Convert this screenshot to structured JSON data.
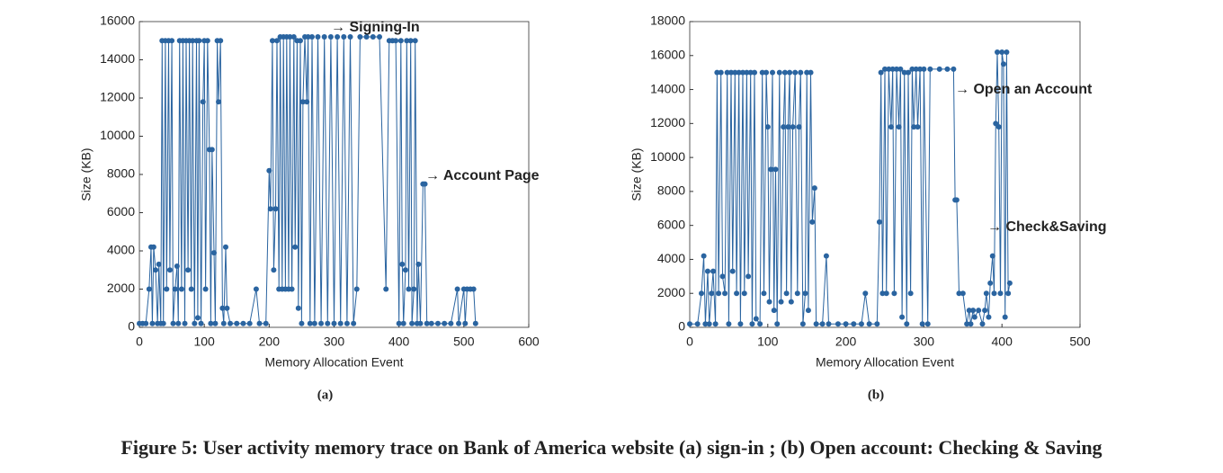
{
  "chart_data": [
    {
      "type": "line",
      "label": "(a)",
      "xlabel": "Memory Allocation Event",
      "ylabel": "Size (KB)",
      "color": "#2a64a0",
      "xlim": [
        0,
        600
      ],
      "xticks": [
        0,
        100,
        200,
        300,
        400,
        500,
        600
      ],
      "ylim": [
        0,
        16000
      ],
      "yticks": [
        0,
        2000,
        4000,
        6000,
        8000,
        10000,
        12000,
        14000,
        16000
      ],
      "annotations": [
        "→ Signing-In",
        "→ Account Page"
      ],
      "x": [
        0,
        5,
        10,
        15,
        18,
        20,
        22,
        25,
        28,
        30,
        33,
        35,
        37,
        40,
        42,
        45,
        47,
        50,
        52,
        55,
        58,
        60,
        62,
        65,
        67,
        70,
        72,
        75,
        77,
        80,
        82,
        85,
        88,
        90,
        92,
        95,
        98,
        100,
        102,
        105,
        108,
        110,
        112,
        115,
        117,
        120,
        122,
        125,
        128,
        130,
        133,
        135,
        140,
        150,
        160,
        170,
        180,
        185,
        195,
        200,
        202,
        205,
        207,
        210,
        212,
        215,
        217,
        220,
        222,
        225,
        227,
        230,
        232,
        235,
        238,
        240,
        243,
        245,
        248,
        250,
        252,
        255,
        258,
        260,
        263,
        266,
        270,
        275,
        280,
        285,
        290,
        295,
        300,
        305,
        310,
        315,
        320,
        325,
        330,
        335,
        340,
        350,
        360,
        370,
        380,
        385,
        390,
        395,
        400,
        403,
        405,
        407,
        410,
        412,
        415,
        418,
        420,
        423,
        425,
        428,
        430,
        433,
        437,
        440,
        443,
        450,
        460,
        470,
        480,
        490,
        492,
        500,
        502,
        505,
        510,
        515,
        518
      ],
      "values": [
        200,
        200,
        200,
        2000,
        4200,
        200,
        4200,
        3000,
        200,
        3300,
        200,
        15000,
        200,
        15000,
        2000,
        15000,
        3000,
        15000,
        200,
        2000,
        3200,
        200,
        15000,
        2000,
        15000,
        200,
        15000,
        3000,
        15000,
        2000,
        15000,
        200,
        15000,
        500,
        15000,
        200,
        11800,
        15000,
        2000,
        15000,
        9300,
        200,
        9300,
        3900,
        200,
        15000,
        11800,
        15000,
        1000,
        200,
        4200,
        1000,
        200,
        200,
        200,
        200,
        2000,
        200,
        200,
        8200,
        6200,
        15000,
        3000,
        6200,
        15000,
        2000,
        15200,
        2000,
        15200,
        2000,
        15200,
        2000,
        15200,
        2000,
        15200,
        4200,
        15000,
        1000,
        15000,
        200,
        11800,
        15200,
        11800,
        15200,
        200,
        15200,
        200,
        15200,
        200,
        15200,
        200,
        15200,
        200,
        15200,
        200,
        15200,
        200,
        15200,
        200,
        2000,
        15200,
        15200,
        15200,
        15200,
        2000,
        15000,
        15000,
        15000,
        200,
        15000,
        3300,
        200,
        3000,
        15000,
        2000,
        15000,
        200,
        2000,
        15000,
        200,
        3300,
        200,
        7500,
        7500,
        200,
        200,
        200,
        200,
        200,
        2000,
        200,
        2000,
        200,
        2000,
        2000,
        2000,
        200
      ]
    },
    {
      "type": "line",
      "label": "(b)",
      "xlabel": "Memory Allocation Event",
      "ylabel": "Size (KB)",
      "color": "#2a64a0",
      "xlim": [
        0,
        500
      ],
      "xticks": [
        0,
        100,
        200,
        300,
        400,
        500
      ],
      "ylim": [
        0,
        18000
      ],
      "yticks": [
        0,
        2000,
        4000,
        6000,
        8000,
        10000,
        12000,
        14000,
        16000,
        18000
      ],
      "annotations": [
        "→ Open an Account",
        "→ Check&Saving"
      ],
      "x": [
        0,
        10,
        15,
        18,
        20,
        23,
        25,
        28,
        30,
        33,
        35,
        37,
        40,
        42,
        45,
        48,
        50,
        53,
        55,
        58,
        60,
        63,
        65,
        68,
        70,
        73,
        75,
        78,
        80,
        83,
        85,
        90,
        93,
        95,
        98,
        100,
        102,
        104,
        106,
        108,
        110,
        112,
        115,
        117,
        120,
        122,
        124,
        126,
        128,
        130,
        132,
        135,
        138,
        140,
        142,
        145,
        148,
        150,
        152,
        155,
        157,
        160,
        162,
        170,
        175,
        178,
        190,
        200,
        210,
        220,
        225,
        230,
        240,
        243,
        245,
        247,
        250,
        252,
        255,
        258,
        260,
        262,
        265,
        268,
        270,
        272,
        275,
        278,
        280,
        283,
        285,
        287,
        290,
        292,
        295,
        298,
        300,
        305,
        308,
        320,
        330,
        338,
        340,
        342,
        345,
        350,
        355,
        358,
        360,
        363,
        365,
        370,
        375,
        378,
        380,
        383,
        385,
        388,
        390,
        392,
        394,
        396,
        398,
        400,
        402,
        404,
        406,
        408,
        410
      ],
      "values": [
        200,
        200,
        2000,
        4200,
        200,
        3300,
        200,
        2000,
        3300,
        200,
        15000,
        2000,
        15000,
        3000,
        2000,
        15000,
        200,
        15000,
        3300,
        15000,
        2000,
        15000,
        200,
        15000,
        2000,
        15000,
        3000,
        15000,
        200,
        15000,
        500,
        200,
        15000,
        2000,
        15000,
        11800,
        1500,
        9300,
        15000,
        1000,
        9300,
        200,
        15000,
        1500,
        11800,
        15000,
        2000,
        11800,
        15000,
        1500,
        11800,
        15000,
        2000,
        11800,
        15000,
        200,
        2000,
        15000,
        1000,
        15000,
        6200,
        8200,
        200,
        200,
        4200,
        200,
        200,
        200,
        200,
        200,
        2000,
        200,
        200,
        6200,
        15000,
        2000,
        15200,
        2000,
        15200,
        11800,
        15200,
        2000,
        15200,
        11800,
        15200,
        600,
        15000,
        200,
        15000,
        2000,
        15200,
        11800,
        15200,
        11800,
        15200,
        200,
        15200,
        200,
        15200,
        15200,
        15200,
        15200,
        7500,
        7500,
        2000,
        2000,
        200,
        1000,
        200,
        1000,
        600,
        1000,
        200,
        1000,
        2000,
        600,
        2600,
        4200,
        2000,
        12000,
        16200,
        11800,
        2000,
        16200,
        15500,
        600,
        16200,
        2000,
        2600
      ]
    }
  ],
  "caption": "Figure 5: User activity memory trace on Bank of America website (a) sign-in ; (b) Open account: Checking & Saving"
}
